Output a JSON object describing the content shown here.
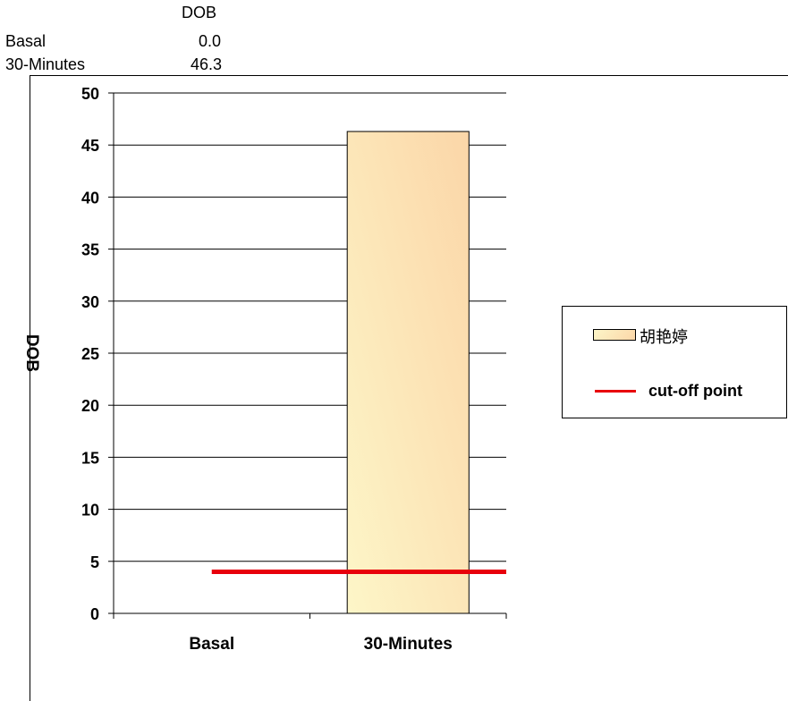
{
  "data_table": {
    "header": "DOB",
    "rows": [
      {
        "label": "Basal",
        "value": "0.0"
      },
      {
        "label": "30-Minutes",
        "value": "46.3"
      }
    ]
  },
  "chart_data": {
    "type": "bar",
    "categories": [
      "Basal",
      "30-Minutes"
    ],
    "series": [
      {
        "name": "胡艳婷",
        "values": [
          0.0,
          46.3
        ]
      }
    ],
    "reference_line": {
      "name": "cut-off point",
      "value": 4.0,
      "color": "#e8000b"
    },
    "ylabel": "DOB",
    "xlabel": "",
    "ylim": [
      0,
      50
    ],
    "yticks": [
      0,
      5,
      10,
      15,
      20,
      25,
      30,
      35,
      40,
      45,
      50
    ],
    "grid": true,
    "legend_position": "right",
    "bar_gradient": [
      "#fdf6c8",
      "#fbd6a8"
    ]
  },
  "legend": {
    "series_label": "胡艳婷",
    "cutoff_label": "cut-off point"
  }
}
